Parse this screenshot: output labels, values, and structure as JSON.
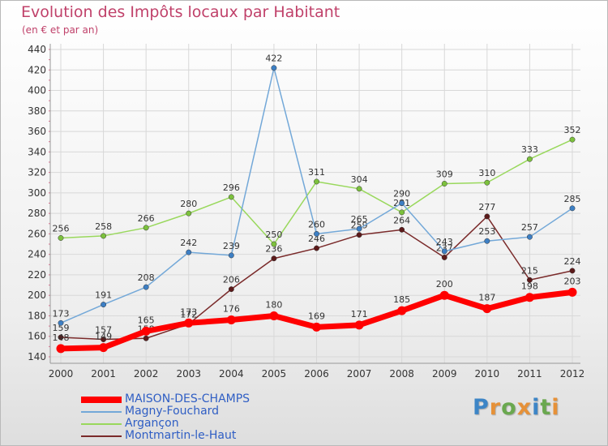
{
  "title": "Evolution des Impôts locaux par Habitant",
  "subtitle": "(en € et par an)",
  "logo": {
    "text": "Proxiti",
    "letters": [
      "P",
      "r",
      "o",
      "x",
      "i",
      "t",
      "i"
    ],
    "colors": [
      "#3d85c6",
      "#e69138",
      "#6aa84f",
      "#e69138",
      "#3d85c6",
      "#6aa84f",
      "#e69138"
    ]
  },
  "chart_data": {
    "type": "line",
    "title": "Evolution des Impôts locaux par Habitant",
    "subtitle": "(en € et par an)",
    "xlabel": "",
    "ylabel": "",
    "x": [
      "2000",
      "2001",
      "2002",
      "2003",
      "2004",
      "2005",
      "2006",
      "2007",
      "2008",
      "2009",
      "2010",
      "2011",
      "2012"
    ],
    "ylim": [
      140,
      440
    ],
    "yticks": [
      "140",
      "160",
      "180",
      "200",
      "220",
      "240",
      "260",
      "280",
      "300",
      "320",
      "340",
      "360",
      "380",
      "400",
      "420",
      "440"
    ],
    "grid": true,
    "legend_position": "bottom-left",
    "series": [
      {
        "name": "Montmartin-le-Haut",
        "color": "#7a2a2a",
        "marker": "#5c1a1a",
        "width": 1.5,
        "values": [
          159,
          157,
          158,
          172,
          206,
          236,
          246,
          259,
          264,
          237,
          277,
          215,
          224
        ],
        "labels": [
          "159",
          "157",
          "158",
          "172",
          "206",
          "236",
          "246",
          "259",
          "264",
          "237",
          "277",
          "215",
          "224"
        ]
      },
      {
        "name": "Arganç on",
        "display_name": "Arganç on",
        "color": "#99d85c",
        "marker": "#7cc13d",
        "width": 1.5,
        "values": [
          256,
          258,
          266,
          280,
          296,
          250,
          311,
          304,
          281,
          309,
          310,
          333,
          352
        ],
        "labels": [
          "256",
          "258",
          "266",
          "280",
          "296",
          "250",
          "311",
          "304",
          "281",
          "309",
          "310",
          "333",
          "352"
        ]
      },
      {
        "name": "Magny-Fouchard",
        "color": "#73a8d8",
        "marker": "#3d7fc4",
        "width": 1.5,
        "values": [
          173,
          191,
          208,
          242,
          239,
          422,
          260,
          265,
          290,
          243,
          253,
          257,
          285
        ],
        "labels": [
          "173",
          "191",
          "208",
          "242",
          "239",
          "422",
          "260",
          "265",
          "290",
          "243",
          "253",
          "257",
          "285"
        ]
      },
      {
        "name": "MAISON-DES-CHAMPS",
        "color": "#ff0000",
        "marker": "#ff0000",
        "width": 7,
        "values": [
          148,
          149,
          165,
          173,
          176,
          180,
          169,
          171,
          185,
          200,
          187,
          198,
          203
        ],
        "labels": [
          "148",
          "149",
          "165",
          "173",
          "176",
          "180",
          "169",
          "171",
          "185",
          "200",
          "187",
          "198",
          "203"
        ]
      }
    ]
  },
  "legend": [
    {
      "label": "MAISON-DES-CHAMPS",
      "color": "#ff0000"
    },
    {
      "label": "Magny-Fouchard",
      "color": "#73a8d8"
    },
    {
      "label": "Argançon",
      "color": "#99d85c"
    },
    {
      "label": "Montmartin-le-Haut",
      "color": "#7a2a2a"
    }
  ]
}
